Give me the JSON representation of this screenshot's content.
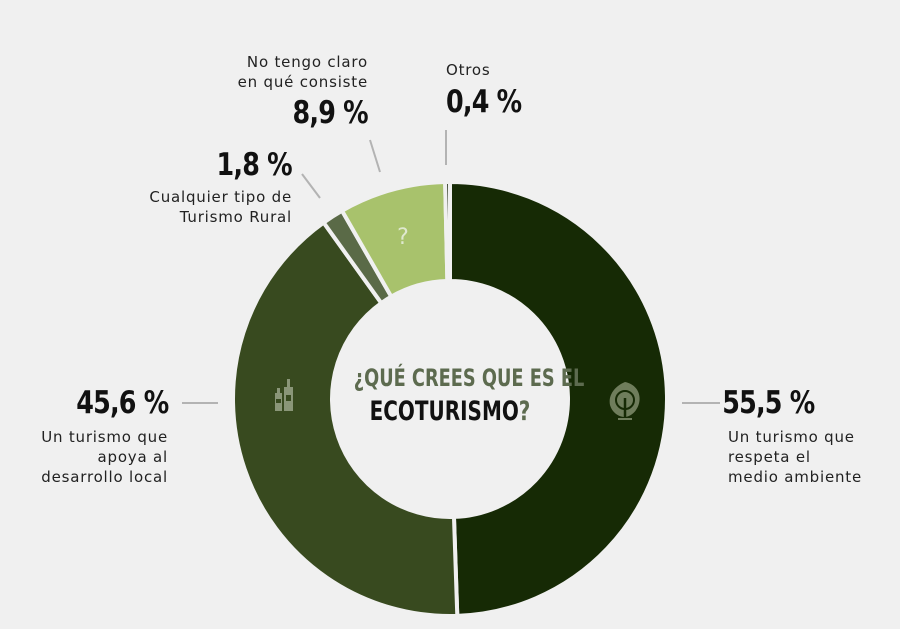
{
  "chart_data": {
    "type": "pie",
    "title_line1": "¿QUÉ CREES QUE ES EL",
    "title_line2": "ECOTURISMO",
    "title_mark": "?",
    "slices": [
      {
        "id": "medio",
        "value": 55.5,
        "label": "55,5 %",
        "desc": "Un turismo que\nrespeta el\nmedio ambiente",
        "color": "#162a05",
        "icon": "tree-icon"
      },
      {
        "id": "local",
        "value": 45.6,
        "label": "45,6 %",
        "desc": "Un turismo que\napoya al\ndesarrollo local",
        "color": "#384a1f",
        "icon": "bottles-icon"
      },
      {
        "id": "rural",
        "value": 1.8,
        "label": "1,8 %",
        "desc": "Cualquier tipo de\nTurismo Rural",
        "color": "#5a6a47",
        "icon": ""
      },
      {
        "id": "noclaro",
        "value": 8.9,
        "label": "8,9 %",
        "desc": "No tengo claro\nen qué consiste",
        "color": "#a8c26c",
        "icon": "question-icon"
      },
      {
        "id": "otros",
        "value": 0.4,
        "label": "0,4 %",
        "desc": "Otros",
        "color": "#1f2b12",
        "icon": ""
      }
    ]
  }
}
